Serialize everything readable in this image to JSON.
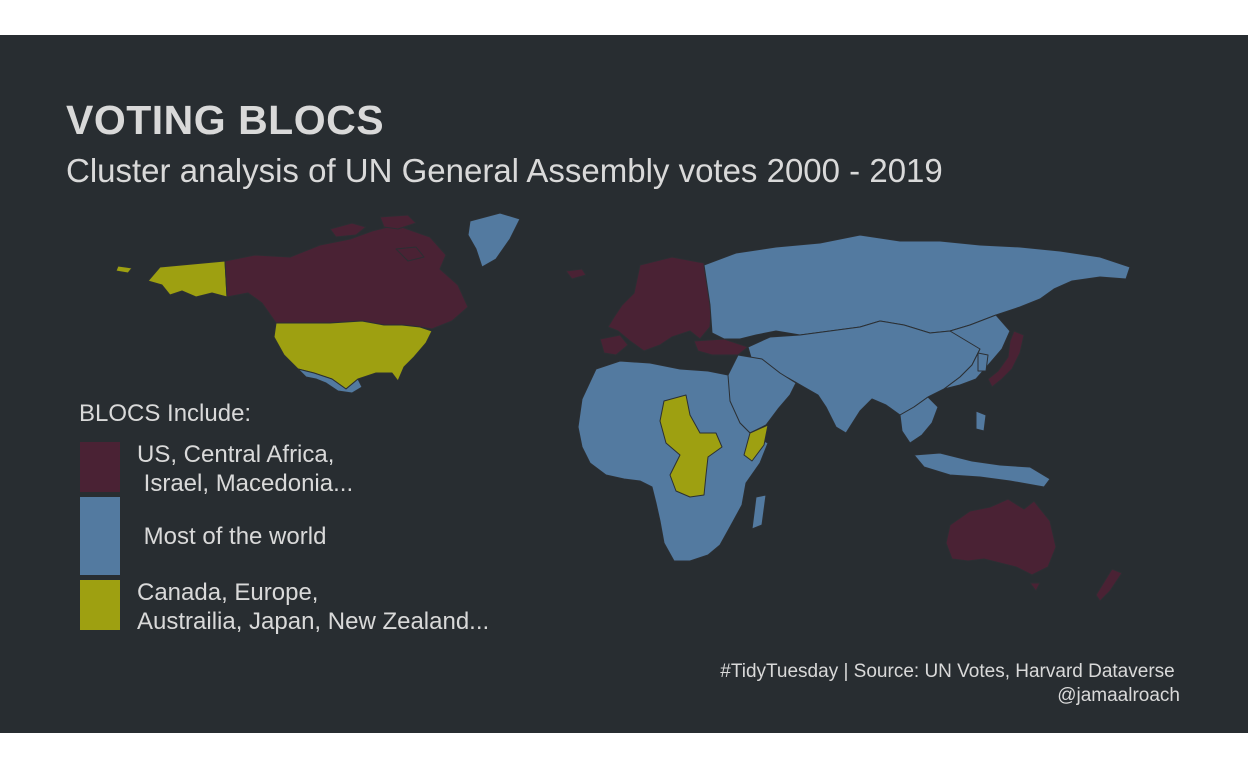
{
  "title": "VOTING BLOCS",
  "subtitle": "Cluster analysis of UN General Assembly votes 2000 - 2019",
  "legend": {
    "title": "BLOCS Include:",
    "items": [
      {
        "label": "US, Central Africa,\n Israel, Macedonia...",
        "color": "#4a2234"
      },
      {
        "label": " Most of the world",
        "color": "#537aa0"
      },
      {
        "label": "Canada, Europe,\nAustrailia, Japan, New Zealand...",
        "color": "#9ea011"
      }
    ]
  },
  "caption": {
    "line1": "#TidyTuesday | Source: UN Votes, Harvard Dataverse ",
    "line2": "@jamaalroach"
  },
  "colors": {
    "background": "#282d31",
    "bloc_maroon": "#4a2234",
    "bloc_blue": "#537aa0",
    "bloc_olive": "#9ea011",
    "text": "#d9d9d9"
  }
}
